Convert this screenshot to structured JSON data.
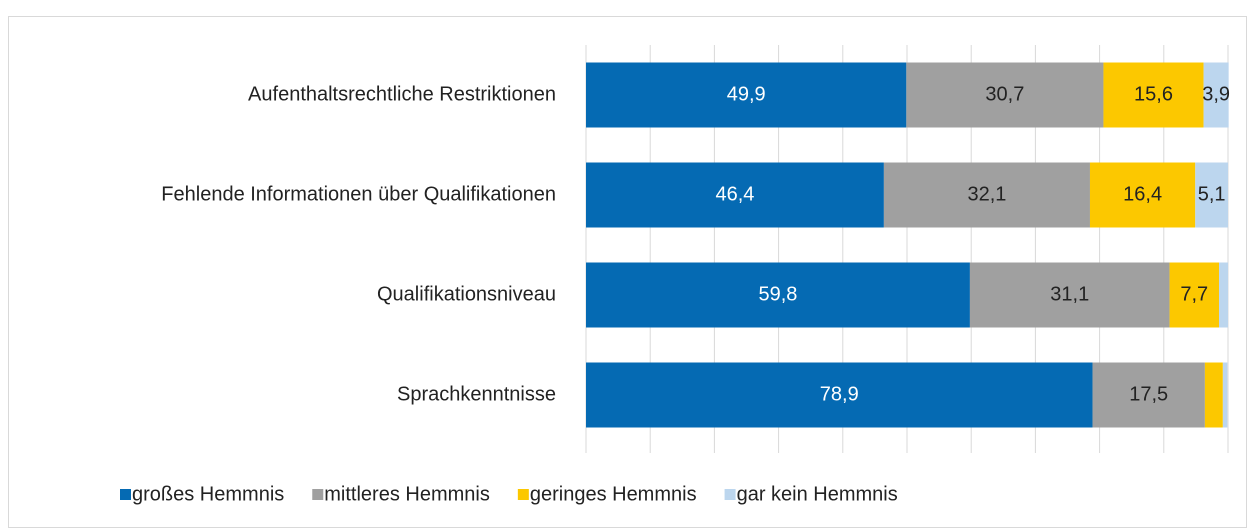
{
  "chart_data": {
    "type": "stacked-bar-horizontal",
    "categories": [
      "Aufenthaltsrechtliche Restriktionen",
      "Fehlende Informationen über Qualifikationen",
      "Qualifikationsniveau",
      "Sprachkenntnisse"
    ],
    "series": [
      {
        "name": "großes Hemmnis",
        "color": "#056ab3",
        "label_color": "#ffffff",
        "values": [
          49.9,
          46.4,
          59.8,
          78.9
        ],
        "value_labels": [
          "49,9",
          "46,4",
          "59,8",
          "78,9"
        ]
      },
      {
        "name": "mittleres Hemmnis",
        "color": "#a0a0a0",
        "label_color": "#222222",
        "values": [
          30.7,
          32.1,
          31.1,
          17.5
        ],
        "value_labels": [
          "30,7",
          "32,1",
          "31,1",
          "17,5"
        ]
      },
      {
        "name": "geringes Hemmnis",
        "color": "#fcc800",
        "label_color": "#222222",
        "values": [
          15.6,
          16.4,
          7.7,
          2.8
        ],
        "value_labels": [
          "15,6",
          "16,4",
          "7,7",
          null
        ]
      },
      {
        "name": "gar kein Hemmnis",
        "color": "#bcd6ee",
        "label_color": "#222222",
        "values": [
          3.9,
          5.1,
          1.4,
          0.7
        ],
        "value_labels": [
          "3,9",
          "5,1",
          null,
          null
        ]
      }
    ],
    "xlim": [
      0,
      100
    ],
    "xticks": [
      0,
      10,
      20,
      30,
      40,
      50,
      60,
      70,
      80,
      90,
      100
    ],
    "grid": true,
    "legend": "bottom"
  }
}
